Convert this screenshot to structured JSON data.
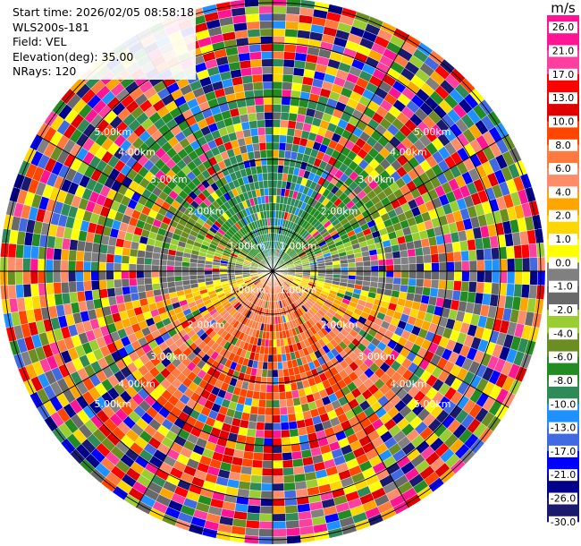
{
  "info": {
    "start_time": "Start time: 2026/02/05 08:58:18",
    "instrument": "WLS200s-181",
    "field": "Field: VEL",
    "elevation": "Elevation(deg): 35.00",
    "nrays": "NRays: 120"
  },
  "colorbar": {
    "unit": "m/s",
    "levels": [
      "26.0",
      "21.0",
      "17.0",
      "13.0",
      "10.0",
      "8.0",
      "6.0",
      "4.0",
      "2.0",
      "1.0",
      "0.0",
      "-1.0",
      "-2.0",
      "-4.0",
      "-6.0",
      "-8.0",
      "-10.0",
      "-13.0",
      "-17.0",
      "-21.0",
      "-26.0",
      "-30.0"
    ],
    "colors": [
      "#ff1493",
      "#ff3fa0",
      "#ff0000",
      "#e00000",
      "#ff4500",
      "#ff7a3c",
      "#ff8c69",
      "#ffa500",
      "#ffd700",
      "#ffff00",
      "#808080",
      "#696969",
      "#9acd32",
      "#6b8e23",
      "#228b22",
      "#2e8b57",
      "#1e90ff",
      "#4169e1",
      "#0000ff",
      "#00008b",
      "#191970"
    ]
  },
  "chart_data": {
    "type": "heatmap",
    "projection": "polar PPI (range rings, azimuth spokes every 30 deg)",
    "nrays": 120,
    "elevation_deg": 35.0,
    "range_rings_labels": [
      "1.00km",
      "2.00km",
      "3.00km",
      "4.00km",
      "5.00km"
    ],
    "field": "VEL",
    "unit": "m/s"
  },
  "rings": {
    "labels": [
      "1.00km",
      "2.00km",
      "3.00km",
      "4.00km",
      "5.00km"
    ]
  }
}
